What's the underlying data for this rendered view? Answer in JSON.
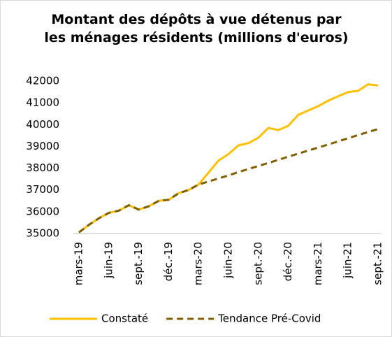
{
  "chart_data": {
    "type": "line",
    "title": "Montant des dépôts à vue détenus par les ménages résidents (millions d'euros)",
    "categories": [
      "mars-19",
      null,
      null,
      "juin-19",
      null,
      null,
      "sept.-19",
      null,
      null,
      "déc.-19",
      null,
      null,
      "mars-20",
      null,
      null,
      "juin-20",
      null,
      null,
      "sept.-20",
      null,
      null,
      "déc.-20",
      null,
      null,
      "mars-21",
      null,
      null,
      "juin-21",
      null,
      null,
      "sept.-21"
    ],
    "series": [
      {
        "name": "Constaté",
        "color": "#FFC000",
        "dashed": false,
        "values": [
          35050,
          35400,
          35700,
          35950,
          36050,
          36300,
          36100,
          36250,
          36500,
          36550,
          36850,
          37000,
          37250,
          37800,
          38350,
          38650,
          39050,
          39150,
          39400,
          39850,
          39750,
          39950,
          40450,
          40650,
          40850,
          41100,
          41300,
          41500,
          41550,
          41850,
          41800
        ]
      },
      {
        "name": "Tendance Pré-Covid",
        "color": "#7F6000",
        "dashed": true,
        "values": [
          35050,
          35400,
          35700,
          35950,
          36050,
          36300,
          36100,
          36250,
          36500,
          36550,
          36850,
          37000,
          37250,
          37390,
          37530,
          37670,
          37820,
          37960,
          38100,
          38240,
          38380,
          38530,
          38670,
          38810,
          38950,
          39090,
          39230,
          39380,
          39520,
          39660,
          39800
        ]
      }
    ],
    "ylim": [
      35000,
      42000
    ],
    "yticks": [
      35000,
      36000,
      37000,
      38000,
      39000,
      40000,
      41000,
      42000
    ],
    "grid": false,
    "legend": "bottom"
  }
}
